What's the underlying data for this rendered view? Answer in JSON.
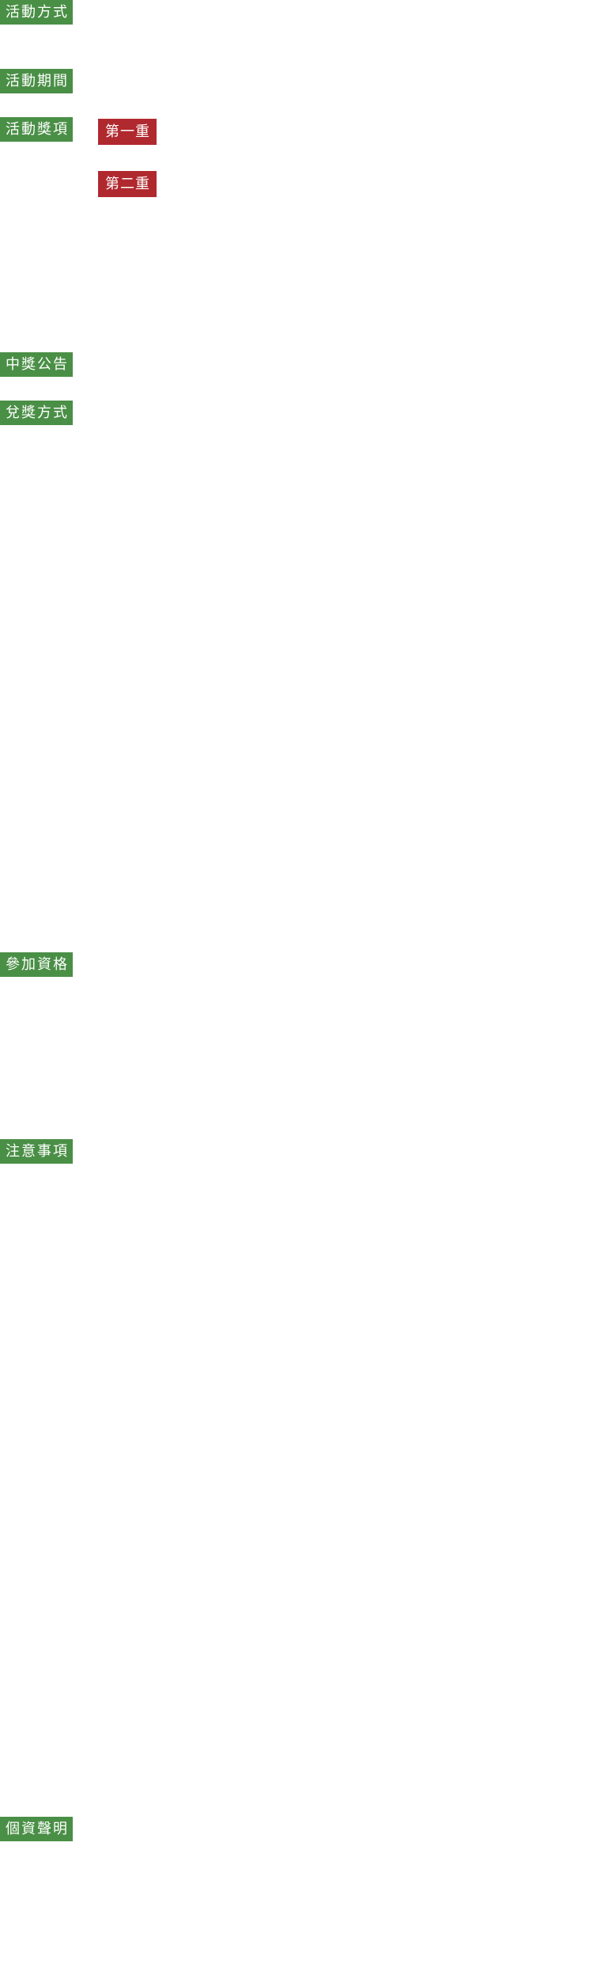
{
  "colors": {
    "section_tag_bg": "#4a8f46",
    "prize_tag_bg": "#b0292f",
    "tag_text": "#ffffff",
    "page_bg": "#ffffff"
  },
  "sections": {
    "method": "活動方式",
    "period": "活動期間",
    "prizes": "活動獎項",
    "announcement": "中獎公告",
    "redemption": "兌獎方式",
    "eligibility": "參加資格",
    "notes": "注意事項",
    "privacy": "個資聲明"
  },
  "prizes": {
    "first": "第一重",
    "second": "第二重"
  }
}
